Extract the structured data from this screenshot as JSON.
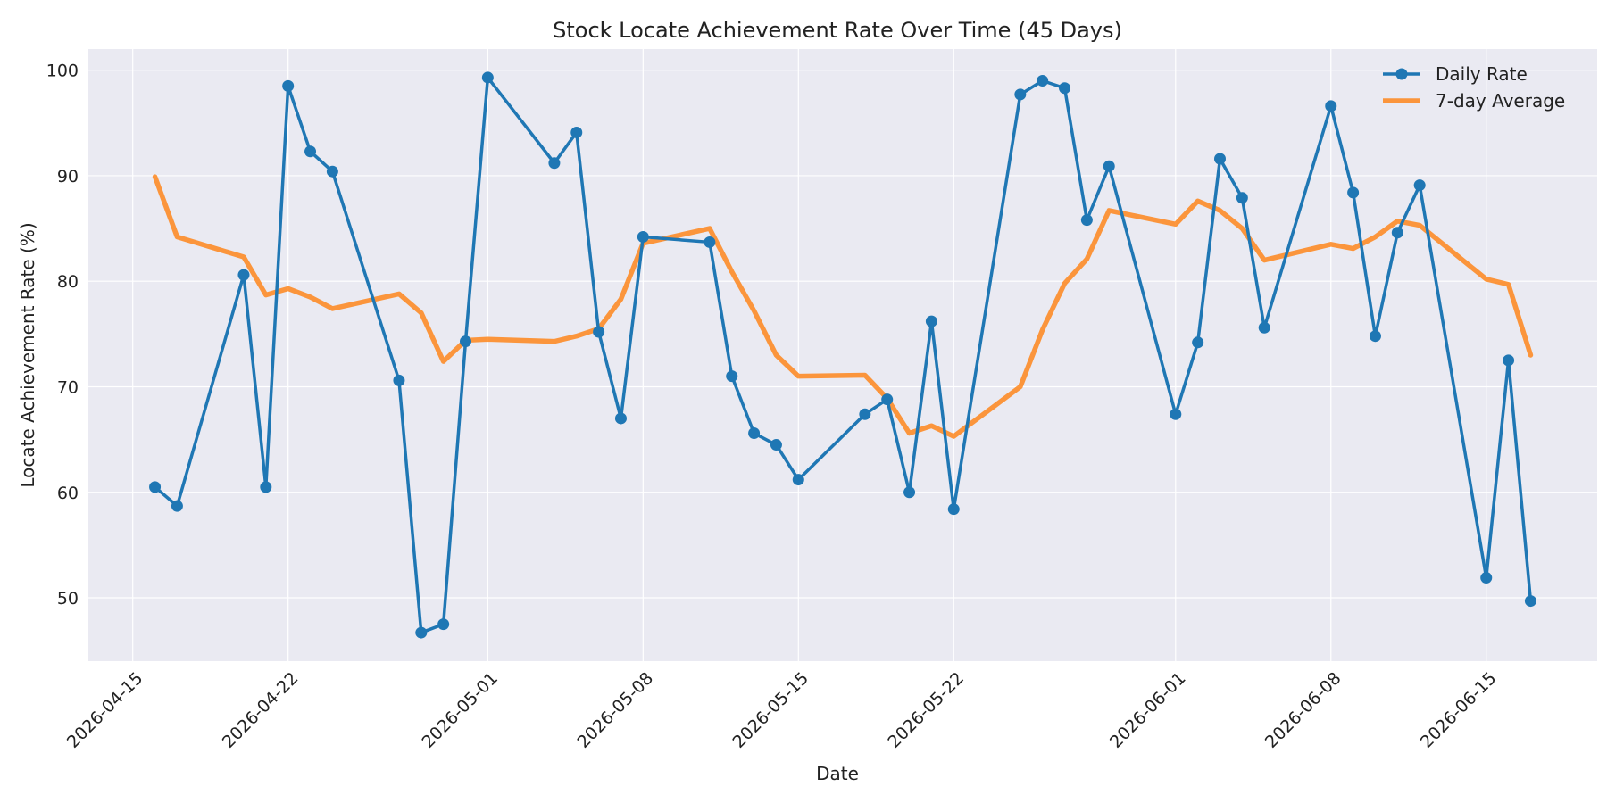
{
  "chart_data": {
    "type": "line",
    "title": "Stock Locate Achievement Rate Over Time (45 Days)",
    "xlabel": "Date",
    "ylabel": "Locate Achievement Rate (%)",
    "xlim": [
      "2026-04-13",
      "2026-06-20"
    ],
    "ylim": [
      44,
      102
    ],
    "x_ticks": [
      "2026-04-15",
      "2026-04-22",
      "2026-05-01",
      "2026-05-08",
      "2026-05-15",
      "2026-05-22",
      "2026-06-01",
      "2026-06-08",
      "2026-06-15"
    ],
    "y_ticks": [
      50,
      60,
      70,
      80,
      90,
      100
    ],
    "grid": true,
    "legend_position": "top-right",
    "series": [
      {
        "name": "Daily Rate",
        "color": "#1f77b4",
        "marker": "circle",
        "points": [
          [
            "2026-04-16",
            60.5
          ],
          [
            "2026-04-17",
            58.7
          ],
          [
            "2026-04-20",
            80.6
          ],
          [
            "2026-04-21",
            60.5
          ],
          [
            "2026-04-22",
            98.5
          ],
          [
            "2026-04-23",
            92.3
          ],
          [
            "2026-04-24",
            90.4
          ],
          [
            "2026-04-27",
            70.6
          ],
          [
            "2026-04-28",
            46.7
          ],
          [
            "2026-04-29",
            47.5
          ],
          [
            "2026-04-30",
            74.3
          ],
          [
            "2026-05-01",
            99.3
          ],
          [
            "2026-05-04",
            91.2
          ],
          [
            "2026-05-05",
            94.1
          ],
          [
            "2026-05-06",
            75.2
          ],
          [
            "2026-05-07",
            67.0
          ],
          [
            "2026-05-08",
            84.2
          ],
          [
            "2026-05-11",
            83.7
          ],
          [
            "2026-05-12",
            71.0
          ],
          [
            "2026-05-13",
            65.6
          ],
          [
            "2026-05-14",
            64.5
          ],
          [
            "2026-05-15",
            61.2
          ],
          [
            "2026-05-18",
            67.4
          ],
          [
            "2026-05-19",
            68.8
          ],
          [
            "2026-05-20",
            60.0
          ],
          [
            "2026-05-21",
            76.2
          ],
          [
            "2026-05-22",
            58.4
          ],
          [
            "2026-05-25",
            97.7
          ],
          [
            "2026-05-26",
            99.0
          ],
          [
            "2026-05-27",
            98.3
          ],
          [
            "2026-05-28",
            85.8
          ],
          [
            "2026-05-29",
            90.9
          ],
          [
            "2026-06-01",
            67.4
          ],
          [
            "2026-06-02",
            74.2
          ],
          [
            "2026-06-03",
            91.6
          ],
          [
            "2026-06-04",
            87.9
          ],
          [
            "2026-06-05",
            75.6
          ],
          [
            "2026-06-08",
            96.6
          ],
          [
            "2026-06-09",
            88.4
          ],
          [
            "2026-06-10",
            74.8
          ],
          [
            "2026-06-11",
            84.6
          ],
          [
            "2026-06-12",
            89.1
          ],
          [
            "2026-06-15",
            51.9
          ],
          [
            "2026-06-16",
            72.5
          ],
          [
            "2026-06-17",
            49.7
          ]
        ]
      },
      {
        "name": "7-day Average",
        "color": "#ff7f0e",
        "marker": "none",
        "points": [
          [
            "2026-04-16",
            89.9
          ],
          [
            "2026-04-17",
            84.2
          ],
          [
            "2026-04-20",
            82.3
          ],
          [
            "2026-04-21",
            78.7
          ],
          [
            "2026-04-22",
            79.3
          ],
          [
            "2026-04-23",
            78.5
          ],
          [
            "2026-04-24",
            77.4
          ],
          [
            "2026-04-27",
            78.8
          ],
          [
            "2026-04-28",
            77.0
          ],
          [
            "2026-04-29",
            72.4
          ],
          [
            "2026-04-30",
            74.4
          ],
          [
            "2026-05-01",
            74.5
          ],
          [
            "2026-05-04",
            74.3
          ],
          [
            "2026-05-05",
            74.8
          ],
          [
            "2026-05-06",
            75.5
          ],
          [
            "2026-05-07",
            78.3
          ],
          [
            "2026-05-08",
            83.6
          ],
          [
            "2026-05-11",
            85.0
          ],
          [
            "2026-05-12",
            80.9
          ],
          [
            "2026-05-13",
            77.2
          ],
          [
            "2026-05-14",
            73.0
          ],
          [
            "2026-05-15",
            71.0
          ],
          [
            "2026-05-18",
            71.1
          ],
          [
            "2026-05-19",
            68.9
          ],
          [
            "2026-05-20",
            65.6
          ],
          [
            "2026-05-21",
            66.3
          ],
          [
            "2026-05-22",
            65.3
          ],
          [
            "2026-05-25",
            70.0
          ],
          [
            "2026-05-26",
            75.4
          ],
          [
            "2026-05-27",
            79.8
          ],
          [
            "2026-05-28",
            82.1
          ],
          [
            "2026-05-29",
            86.7
          ],
          [
            "2026-06-01",
            85.4
          ],
          [
            "2026-06-02",
            87.6
          ],
          [
            "2026-06-03",
            86.7
          ],
          [
            "2026-06-04",
            85.0
          ],
          [
            "2026-06-05",
            82.0
          ],
          [
            "2026-06-08",
            83.5
          ],
          [
            "2026-06-09",
            83.1
          ],
          [
            "2026-06-10",
            84.2
          ],
          [
            "2026-06-11",
            85.7
          ],
          [
            "2026-06-12",
            85.3
          ],
          [
            "2026-06-15",
            80.2
          ],
          [
            "2026-06-16",
            79.7
          ],
          [
            "2026-06-17",
            73.0
          ]
        ]
      }
    ]
  }
}
